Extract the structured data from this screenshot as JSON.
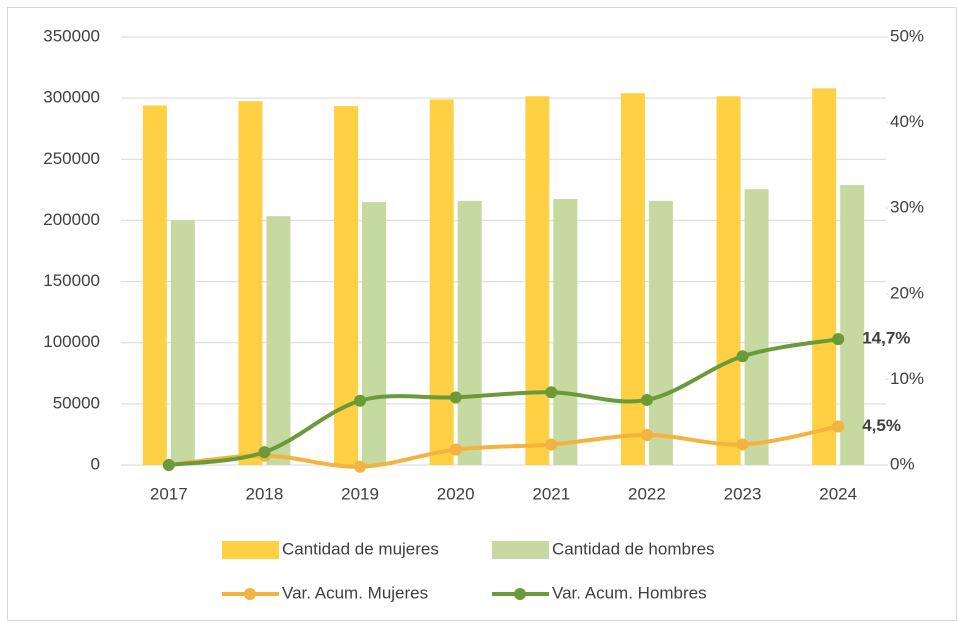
{
  "chart_data": {
    "type": "bar-line",
    "categories": [
      "2017",
      "2018",
      "2019",
      "2020",
      "2021",
      "2022",
      "2023",
      "2024"
    ],
    "series": [
      {
        "name": "Cantidad de mujeres",
        "type": "bar",
        "color": "#FFD044",
        "values": [
          294000,
          297500,
          293500,
          299000,
          301500,
          304000,
          301500,
          308000
        ]
      },
      {
        "name": "Cantidad de hombres",
        "type": "bar",
        "color": "#C5D9A0",
        "values": [
          200000,
          203500,
          215000,
          216000,
          217500,
          216000,
          225500,
          229000
        ]
      },
      {
        "name": "Var. Acum. Mujeres",
        "type": "line",
        "axis": "y2",
        "color": "#F4B23E",
        "values": [
          0,
          1.1,
          -0.2,
          1.8,
          2.4,
          3.5,
          2.4,
          4.5
        ],
        "value_labels": [
          null,
          null,
          null,
          null,
          null,
          null,
          null,
          "4,5%"
        ]
      },
      {
        "name": "Var. Acum. Hombres",
        "type": "line",
        "axis": "y2",
        "color": "#6A9A3A",
        "values": [
          0,
          1.5,
          7.5,
          7.9,
          8.5,
          7.6,
          12.7,
          14.7
        ],
        "value_labels": [
          null,
          null,
          null,
          null,
          null,
          null,
          null,
          "14,7%"
        ]
      }
    ],
    "ylim": [
      0,
      350000
    ],
    "yticks": [
      0,
      50000,
      100000,
      150000,
      200000,
      250000,
      300000,
      350000
    ],
    "y2lim": [
      0,
      50
    ],
    "y2ticks": [
      {
        "value": 0,
        "label": "0%"
      },
      {
        "value": 10,
        "label": "10%"
      },
      {
        "value": 20,
        "label": "20%"
      },
      {
        "value": 30,
        "label": "30%"
      },
      {
        "value": 40,
        "label": "40%"
      },
      {
        "value": 50,
        "label": "50%"
      }
    ],
    "grid": true,
    "legend": "bottom"
  }
}
